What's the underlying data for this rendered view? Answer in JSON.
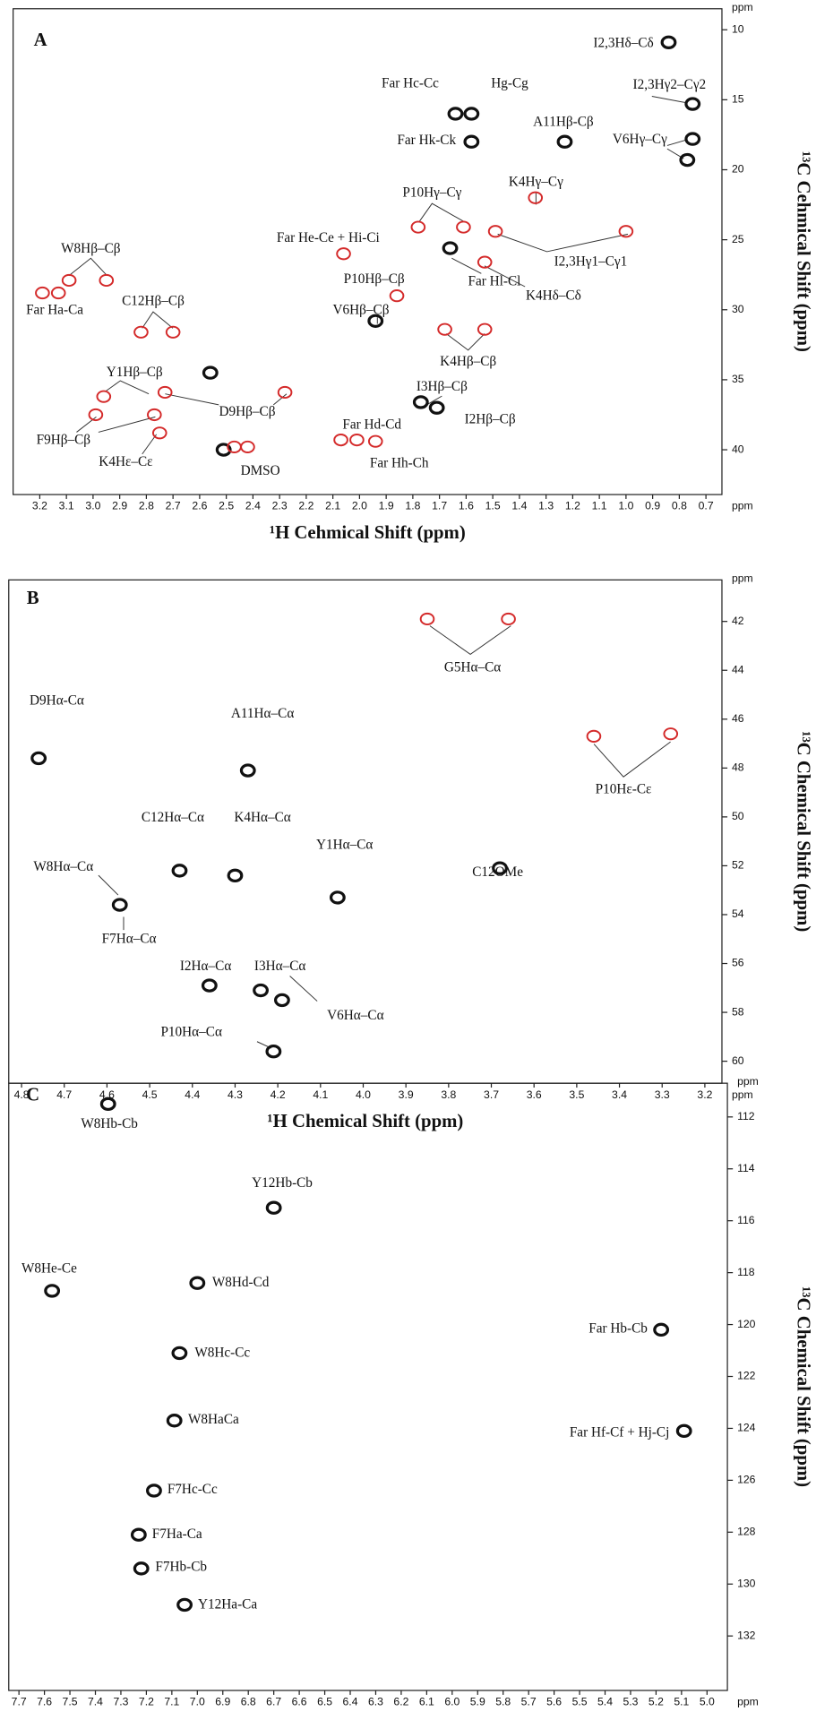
{
  "chart_data": [
    {
      "type": "scatter",
      "panel_label": "A",
      "x_label": "¹H Cehmical Shift (ppm)",
      "y_label": "¹³C Cehmical Shift (ppm)",
      "axis_unit": "ppm",
      "xlim": [
        3.3,
        0.64
      ],
      "ylim": [
        43.2,
        8.5
      ],
      "xticks": [
        3.2,
        3.1,
        {
          "value": 3,
          "label": "3.0"
        },
        2.9,
        2.8,
        2.7,
        2.6,
        2.5,
        2.4,
        2.3,
        2.2,
        2.1,
        {
          "value": 2,
          "label": "2.0"
        },
        1.9,
        1.8,
        1.7,
        1.6,
        1.5,
        1.4,
        1.3,
        1.2,
        1.1,
        {
          "value": 1,
          "label": "1.0"
        },
        0.9,
        0.8,
        0.7
      ],
      "yticks": [
        10,
        15,
        20,
        25,
        30,
        35,
        40
      ],
      "series": [
        {
          "color": "#111111",
          "x": [
            0.84,
            1.64,
            1.58,
            1.58,
            1.23,
            0.75,
            0.75,
            0.77,
            1.66,
            2.56,
            2.51,
            1.77,
            1.71,
            1.94
          ],
          "values": [
            10.9,
            16.0,
            16.0,
            18.0,
            18.0,
            15.3,
            17.8,
            19.3,
            25.6,
            34.5,
            40.0,
            36.6,
            37.0,
            30.8
          ]
        },
        {
          "color": "#d42a2a",
          "x": [
            3.09,
            2.95,
            3.19,
            3.13,
            2.82,
            2.7,
            2.96,
            2.73,
            2.28,
            2.99,
            2.77,
            2.75,
            2.47,
            2.42,
            2.06,
            1.78,
            1.61,
            1.49,
            1.0,
            1.34,
            1.53,
            1.86,
            1.68,
            1.53,
            2.07,
            2.01,
            1.94
          ],
          "values": [
            27.9,
            27.9,
            28.8,
            28.8,
            31.6,
            31.6,
            36.2,
            35.9,
            35.9,
            37.5,
            37.5,
            38.8,
            39.8,
            39.8,
            26.0,
            24.1,
            24.1,
            24.4,
            24.4,
            22.0,
            26.6,
            29.0,
            31.4,
            31.4,
            39.3,
            39.3,
            39.4
          ]
        }
      ],
      "annotations": [
        "I2,3Hδ–Cδ",
        "I2,3Hγ2–Cγ2",
        "Far Hc-Cc",
        "Hg-Cg",
        "Far Hk-Ck",
        "A11Hβ-Cβ",
        "V6Hγ–Cγ",
        "K4Hγ–Cγ",
        "P10Hγ–Cγ",
        "Far He-Ce + Hi-Ci",
        "I2,3Hγ1–Cγ1",
        "W8Hβ–Cβ",
        "Far Ha-Ca",
        "C12Hβ–Cβ",
        "P10Hβ–Cβ",
        "V6Hβ–Cβ",
        "Far Hl-Cl",
        "K4Hδ–Cδ",
        "K4Hβ–Cβ",
        "Y1Hβ–Cβ",
        "D9Hβ–Cβ",
        "I3Hβ–Cβ",
        "F9Hβ–Cβ",
        "I2Hβ–Cβ",
        "K4Hε–Cε",
        "DMSO",
        "Far Hd-Cd",
        "Far Hh-Ch"
      ]
    },
    {
      "type": "scatter",
      "panel_label": "B",
      "x_label": "¹H Chemical Shift (ppm)",
      "y_label": "¹³C Chemical Shift (ppm)",
      "axis_unit": "ppm",
      "xlim": [
        4.83,
        3.16
      ],
      "ylim": [
        60.9,
        40.3
      ],
      "xticks": [
        4.8,
        4.7,
        4.6,
        4.5,
        4.4,
        4.3,
        4.2,
        4.1,
        {
          "value": 4,
          "label": "4.0"
        },
        3.9,
        3.8,
        3.7,
        3.6,
        3.5,
        3.4,
        3.3,
        3.2
      ],
      "yticks": [
        42,
        44,
        46,
        48,
        50,
        52,
        54,
        56,
        58,
        60
      ],
      "series": [
        {
          "color": "#111111",
          "x": [
            4.76,
            4.27,
            4.43,
            4.3,
            4.06,
            3.68,
            4.57,
            4.36,
            4.24,
            4.19,
            4.21
          ],
          "values": [
            47.6,
            48.1,
            52.2,
            52.4,
            53.3,
            52.1,
            53.6,
            56.9,
            57.1,
            57.5,
            59.6
          ]
        },
        {
          "color": "#d42a2a",
          "x": [
            3.85,
            3.66,
            3.46,
            3.28
          ],
          "values": [
            41.9,
            41.9,
            46.7,
            46.6
          ]
        }
      ],
      "annotations": [
        "D9Hα-Cα",
        "G5Hα–Cα",
        "A11Hα–Cα",
        "P10Hε-Cε",
        "W8Hα–Cα",
        "C12Hα–Cα",
        "K4Hα–Cα",
        "Y1Hα–Cα",
        "C12OMe",
        "F7Hα–Cα",
        "I2Hα–Cα",
        "I3Hα–Cα",
        "V6Hα–Cα",
        "P10Hα–Cα"
      ]
    },
    {
      "type": "scatter",
      "panel_label": "C",
      "x_label": "¹H Chemical Shift (ppm)",
      "y_label": "¹³C Chemical Shift (ppm)",
      "axis_unit": "ppm",
      "xlim": [
        7.74,
        4.92
      ],
      "ylim": [
        134.1,
        110.7
      ],
      "xticks": [
        7.7,
        7.6,
        7.5,
        7.4,
        7.3,
        7.2,
        7.1,
        {
          "value": 7,
          "label": "7.0"
        },
        6.9,
        6.8,
        6.7,
        6.6,
        6.5,
        6.4,
        6.3,
        6.2,
        6.1,
        {
          "value": 6,
          "label": "6.0"
        },
        5.9,
        5.8,
        5.7,
        5.6,
        5.5,
        5.4,
        5.3,
        5.2,
        5.1,
        {
          "value": 5,
          "label": "5.0"
        }
      ],
      "yticks": [
        112,
        114,
        116,
        118,
        120,
        122,
        124,
        126,
        128,
        130,
        132
      ],
      "series": [
        {
          "color": "#111111",
          "x": [
            7.35,
            6.7,
            7.57,
            7.0,
            7.07,
            5.18,
            7.09,
            5.09,
            7.17,
            7.23,
            7.22,
            7.05
          ],
          "values": [
            111.5,
            115.5,
            118.7,
            118.4,
            121.1,
            120.2,
            123.7,
            124.1,
            126.4,
            128.1,
            129.4,
            130.8
          ]
        }
      ],
      "annotations": [
        "W8Hb-Cb",
        "Y12Hb-Cb",
        "W8He-Ce",
        "W8Hd-Cd",
        "W8Hc-Cc",
        "Far Hb-Cb",
        "W8HaCa",
        "Far Hf-Cf + Hj-Cj",
        "F7Hc-Cc",
        "F7Ha-Ca",
        "F7Hb-Cb",
        "Y12Ha-Ca"
      ]
    }
  ]
}
